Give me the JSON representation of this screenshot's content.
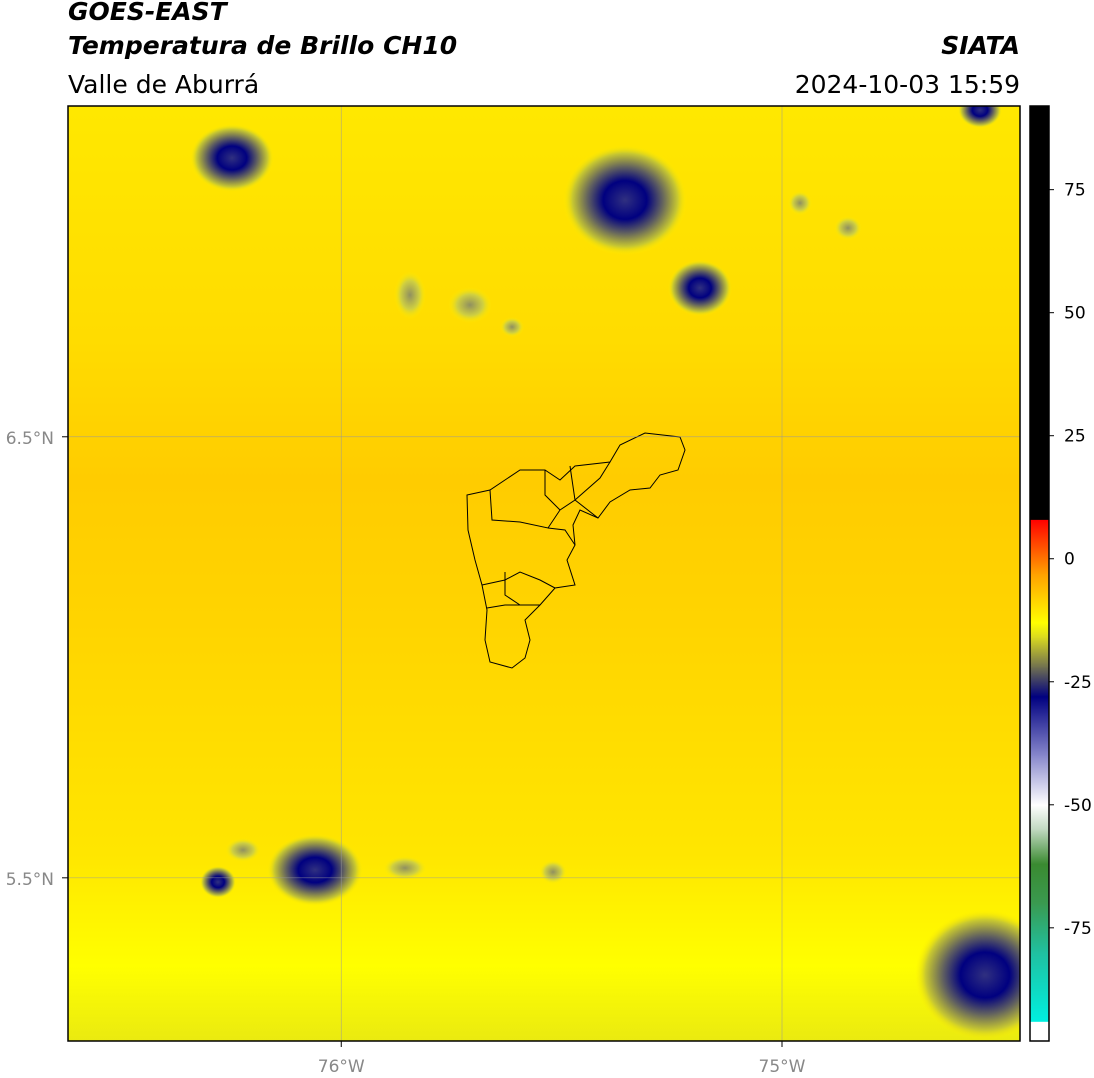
{
  "chart_data": {
    "type": "map",
    "title": "GOES-EAST",
    "subtitle": "Temperatura de Brillo CH10",
    "source": "SIATA",
    "region": "Valle de Aburrá",
    "datetime": "2024-10-03 15:59",
    "xlim": [
      -76.62,
      -74.46
    ],
    "ylim": [
      5.13,
      7.25
    ],
    "xticks": [
      {
        "value": -76,
        "label": "76°W"
      },
      {
        "value": -75,
        "label": "75°W"
      }
    ],
    "yticks": [
      {
        "value": 6.5,
        "label": "6.5°N"
      },
      {
        "value": 5.5,
        "label": "5.5°N"
      }
    ],
    "grid": true,
    "colorbar_lim": [
      -98,
      92
    ],
    "colorbar_ticks": [
      75,
      50,
      25,
      0,
      -25,
      -50,
      -75
    ],
    "colorscale": [
      {
        "value": -98,
        "color": "#ffffff"
      },
      {
        "value": -94,
        "color": "#ffffff"
      },
      {
        "value": -94,
        "color": "#00f0e0"
      },
      {
        "value": -80,
        "color": "#20c0a0"
      },
      {
        "value": -70,
        "color": "#3a9a50"
      },
      {
        "value": -62,
        "color": "#3a8a30"
      },
      {
        "value": -55,
        "color": "#c0d8c0"
      },
      {
        "value": -50,
        "color": "#ffffff"
      },
      {
        "value": -40,
        "color": "#8888cc"
      },
      {
        "value": -28,
        "color": "#000080"
      },
      {
        "value": -22,
        "color": "#707050"
      },
      {
        "value": -16,
        "color": "#d8d820"
      },
      {
        "value": -13,
        "color": "#ffff00"
      },
      {
        "value": -3,
        "color": "#ffa000"
      },
      {
        "value": 8,
        "color": "#ff0000"
      },
      {
        "value": 8,
        "color": "#000000"
      },
      {
        "value": 92,
        "color": "#000000"
      }
    ]
  }
}
